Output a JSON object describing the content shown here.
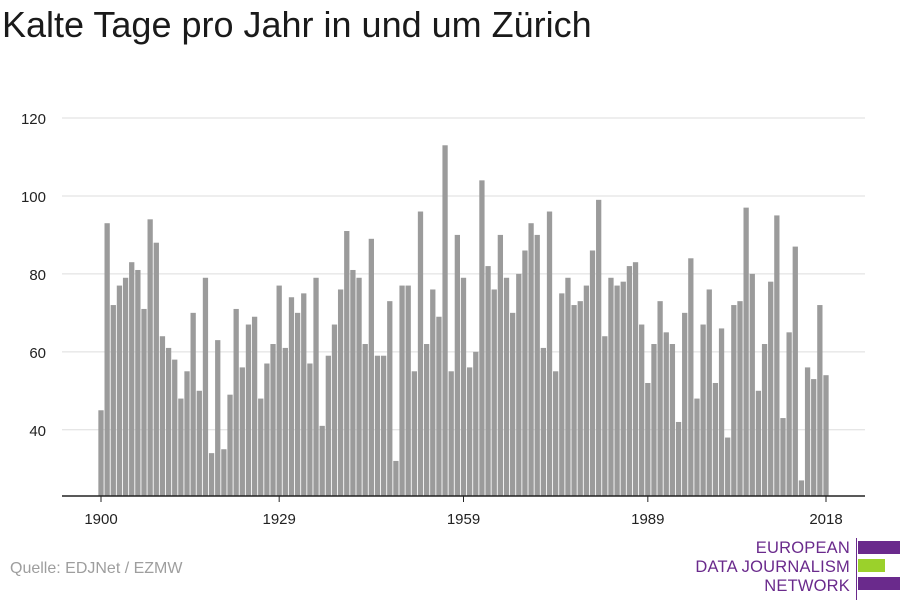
{
  "title": "Kalte Tage pro Jahr in und um Zürich",
  "source": "Quelle: EDJNet / EZMW",
  "logo": {
    "lines": [
      "EUROPEAN",
      "DATA JOURNALISM",
      "NETWORK"
    ],
    "color": "#6a2a8c",
    "accent": "#9bd12b"
  },
  "colors": {
    "bar": "#9b9b9b",
    "grid": "#dddddd",
    "axis": "#222222",
    "tick_text": "#222222"
  },
  "chart_data": {
    "type": "bar",
    "title": "Kalte Tage pro Jahr in und um Zürich",
    "xlabel": "",
    "ylabel": "",
    "ylim": [
      23,
      120
    ],
    "yticks": [
      40,
      60,
      80,
      100,
      120
    ],
    "xticks": [
      1900,
      1929,
      1959,
      1989,
      2018
    ],
    "grid": true,
    "legend": "none",
    "x": [
      1900,
      1901,
      1902,
      1903,
      1904,
      1905,
      1906,
      1907,
      1908,
      1909,
      1910,
      1911,
      1912,
      1913,
      1914,
      1915,
      1916,
      1917,
      1918,
      1919,
      1920,
      1921,
      1922,
      1923,
      1924,
      1925,
      1926,
      1927,
      1928,
      1929,
      1930,
      1931,
      1932,
      1933,
      1934,
      1935,
      1936,
      1937,
      1938,
      1939,
      1940,
      1941,
      1942,
      1943,
      1944,
      1945,
      1946,
      1947,
      1948,
      1949,
      1950,
      1951,
      1952,
      1953,
      1954,
      1955,
      1956,
      1957,
      1958,
      1959,
      1960,
      1961,
      1962,
      1963,
      1964,
      1965,
      1966,
      1967,
      1968,
      1969,
      1970,
      1971,
      1972,
      1973,
      1974,
      1975,
      1976,
      1977,
      1978,
      1979,
      1980,
      1981,
      1982,
      1983,
      1984,
      1985,
      1986,
      1987,
      1988,
      1989,
      1990,
      1991,
      1992,
      1993,
      1994,
      1995,
      1996,
      1997,
      1998,
      1999,
      2000,
      2001,
      2002,
      2003,
      2004,
      2005,
      2006,
      2007,
      2008,
      2009,
      2010,
      2011,
      2012,
      2013,
      2014,
      2015,
      2016,
      2017,
      2018
    ],
    "values": [
      45,
      93,
      72,
      77,
      79,
      83,
      81,
      71,
      94,
      88,
      64,
      61,
      58,
      48,
      55,
      70,
      50,
      79,
      34,
      63,
      35,
      49,
      71,
      56,
      67,
      69,
      48,
      57,
      62,
      77,
      61,
      74,
      70,
      75,
      57,
      79,
      41,
      59,
      67,
      76,
      91,
      81,
      79,
      62,
      89,
      59,
      59,
      73,
      32,
      77,
      77,
      55,
      96,
      62,
      76,
      69,
      113,
      55,
      90,
      79,
      56,
      60,
      104,
      82,
      76,
      90,
      79,
      70,
      80,
      86,
      93,
      90,
      61,
      96,
      55,
      75,
      79,
      72,
      73,
      77,
      86,
      99,
      64,
      79,
      77,
      78,
      82,
      83,
      67,
      52,
      62,
      73,
      65,
      62,
      42,
      70,
      84,
      48,
      67,
      76,
      52,
      66,
      38,
      72,
      73,
      97,
      80,
      50,
      62,
      78,
      95,
      43,
      65,
      87,
      27,
      56,
      53,
      72,
      54
    ]
  }
}
